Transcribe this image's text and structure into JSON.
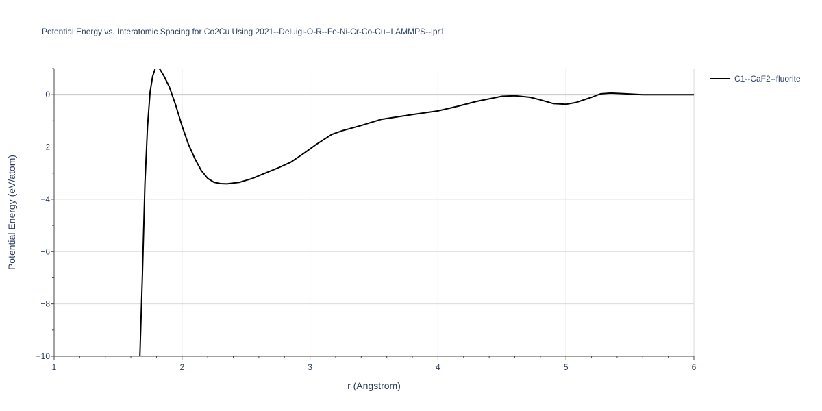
{
  "chart_data": {
    "type": "line",
    "title": "Potential Energy vs. Interatomic Spacing for Co2Cu Using 2021--Deluigi-O-R--Fe-Ni-Cr-Co-Cu--LAMMPS--ipr1",
    "xlabel": "r (Angstrom)",
    "ylabel": "Potential Energy (eV/atom)",
    "xlim": [
      1,
      6
    ],
    "ylim": [
      -10,
      1
    ],
    "xticks": [
      1,
      2,
      3,
      4,
      5,
      6
    ],
    "xtick_labels": [
      "1",
      "2",
      "3",
      "4",
      "5",
      "6"
    ],
    "yticks": [
      -10,
      -8,
      -6,
      -4,
      -2,
      0
    ],
    "ytick_labels": [
      "−10",
      "−8",
      "−6",
      "−4",
      "−2",
      "0"
    ],
    "grid": true,
    "legend_position": "top-right",
    "series": [
      {
        "name": "C1--CaF2--fluorite",
        "color": "#000000",
        "x": [
          1.67,
          1.69,
          1.71,
          1.73,
          1.75,
          1.77,
          1.79,
          1.81,
          1.83,
          1.86,
          1.9,
          1.95,
          2.0,
          2.05,
          2.1,
          2.15,
          2.2,
          2.25,
          2.3,
          2.35,
          2.4,
          2.45,
          2.55,
          2.65,
          2.75,
          2.85,
          2.95,
          3.05,
          3.17,
          3.25,
          3.4,
          3.56,
          3.8,
          4.0,
          4.15,
          4.3,
          4.5,
          4.6,
          4.72,
          4.8,
          4.9,
          5.0,
          5.08,
          5.2,
          5.27,
          5.35,
          5.45,
          5.6,
          5.8,
          6.0
        ],
        "y": [
          -10.0,
          -6.9,
          -3.4,
          -1.2,
          0.1,
          0.7,
          1.0,
          1.05,
          0.95,
          0.7,
          0.3,
          -0.4,
          -1.2,
          -1.9,
          -2.45,
          -2.9,
          -3.2,
          -3.35,
          -3.4,
          -3.41,
          -3.38,
          -3.35,
          -3.2,
          -3.0,
          -2.8,
          -2.58,
          -2.25,
          -1.9,
          -1.52,
          -1.38,
          -1.18,
          -0.94,
          -0.76,
          -0.62,
          -0.45,
          -0.26,
          -0.06,
          -0.04,
          -0.1,
          -0.2,
          -0.34,
          -0.37,
          -0.3,
          -0.1,
          0.03,
          0.06,
          0.04,
          0.0,
          0.0,
          0.0
        ]
      }
    ]
  }
}
